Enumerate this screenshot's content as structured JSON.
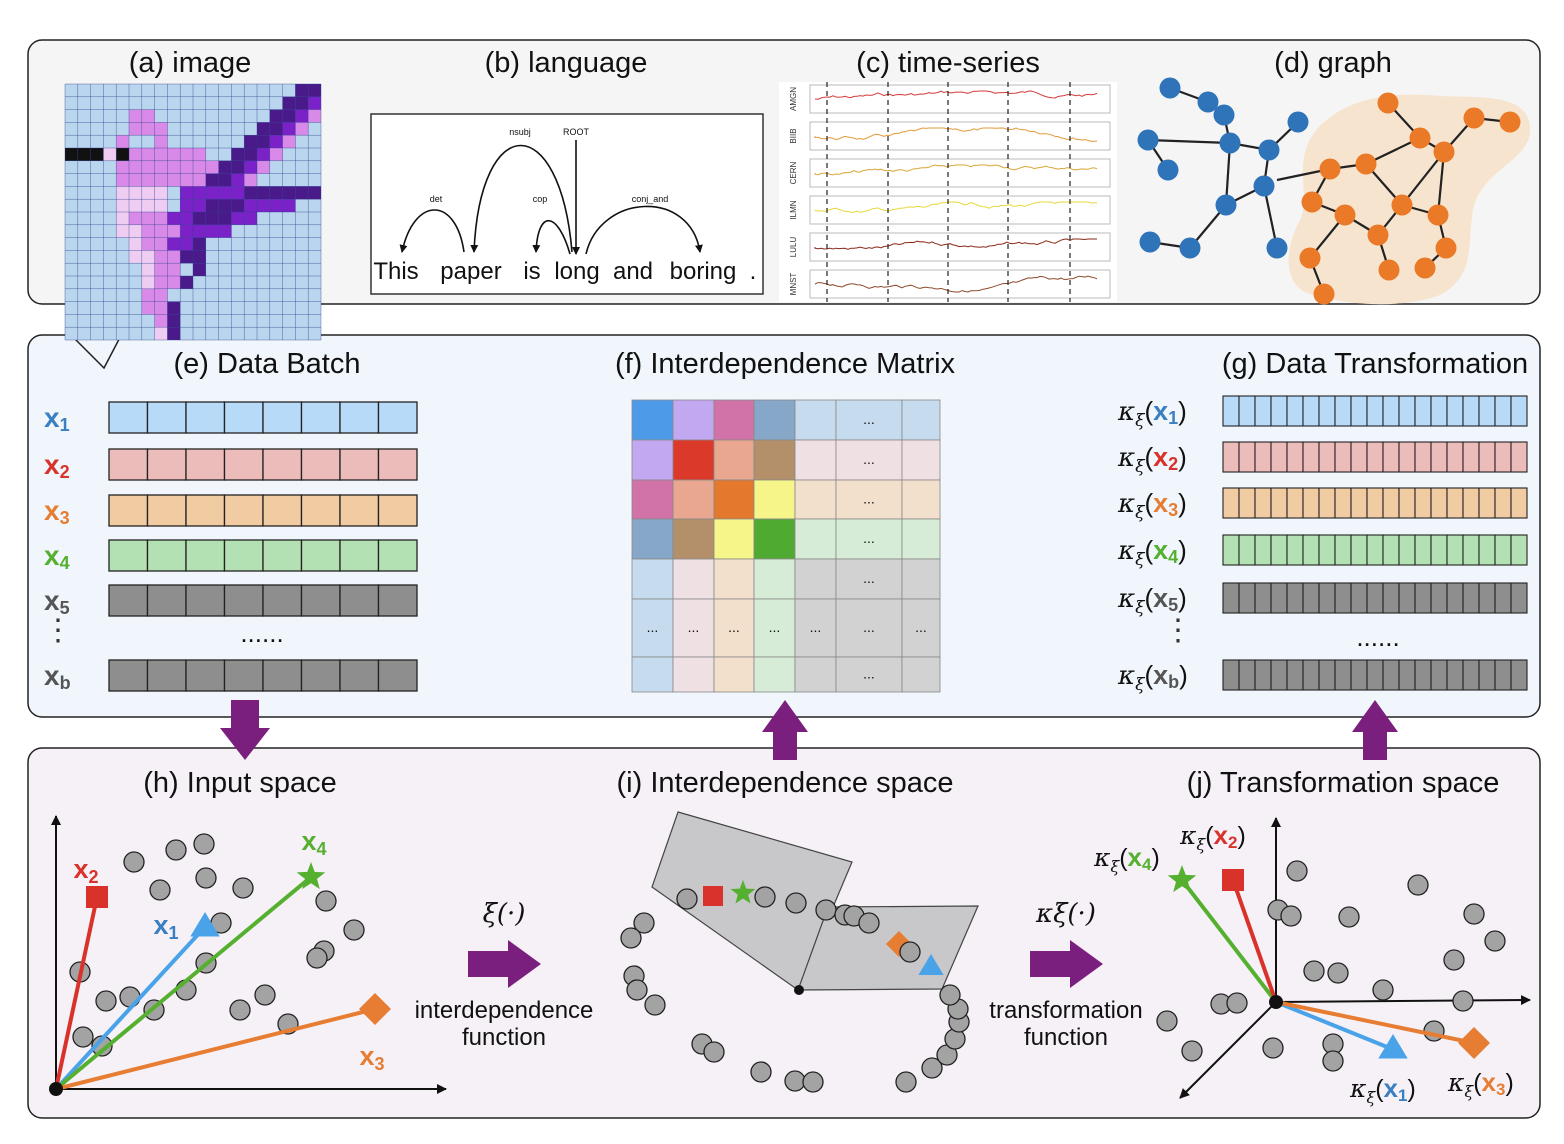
{
  "colors": {
    "x1": "#3a7fc1",
    "x2": "#d9322a",
    "x3": "#e67d33",
    "x4": "#55b030",
    "x5": "#555555",
    "purple": "#7b1f7e",
    "node_blue": "#2f73b9",
    "node_orange": "#ea7a27"
  },
  "panels": {
    "a": {
      "title": "(a) image"
    },
    "b": {
      "title": "(b) language",
      "words": [
        "This",
        "paper",
        "is",
        "long",
        "and",
        "boring",
        "."
      ],
      "arcs": [
        "det",
        "nsubj",
        "ROOT",
        "cop",
        "conj_and"
      ]
    },
    "c": {
      "title": "(c) time-series",
      "tickers": [
        "AMGN",
        "BIIB",
        "CERN",
        "ILMN",
        "LULU",
        "MNST"
      ]
    },
    "d": {
      "title": "(d) graph"
    },
    "e": {
      "title": "(e) Data Batch",
      "rows": [
        {
          "sym": "x",
          "sub": "1"
        },
        {
          "sym": "x",
          "sub": "2"
        },
        {
          "sym": "x",
          "sub": "3"
        },
        {
          "sym": "x",
          "sub": "4"
        },
        {
          "sym": "x",
          "sub": "5"
        },
        {
          "sym": "x",
          "sub": "b"
        }
      ],
      "vdots": "⋮",
      "dots": "......"
    },
    "f": {
      "title": "(f) Interdependence Matrix",
      "ellipsis": "..."
    },
    "g": {
      "title": "(g) Data Transformation",
      "kappa": "κ",
      "xi": "ξ",
      "vdots": "⋮",
      "dots": "......"
    },
    "h": {
      "title": "(h) Input space",
      "labels": [
        {
          "sym": "x",
          "sub": "2"
        },
        {
          "sym": "x",
          "sub": "1"
        },
        {
          "sym": "x",
          "sub": "4"
        },
        {
          "sym": "x",
          "sub": "3"
        }
      ]
    },
    "i": {
      "title": "(i) Interdependence space",
      "func_symbol": "ξ(·)",
      "func_line1": "interdependence",
      "func_line2": "function"
    },
    "j": {
      "title": "(j) Transformation space",
      "func_symbol": "κξ(·)",
      "func_line1": "transformation",
      "func_line2": "function"
    }
  }
}
